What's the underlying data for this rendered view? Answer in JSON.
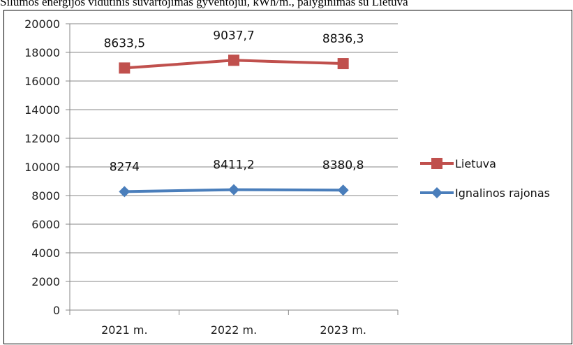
{
  "caption": "Šilumos energijos vidutinis suvartojimas gyventojui, kWh/m., palyginimas su Lietuva",
  "colors": {
    "series_1": "#c0504d",
    "series_2": "#4a7ebb",
    "grid": "#878787",
    "axis": "#878787"
  },
  "chart_data": {
    "type": "line",
    "categories": [
      "2021 m.",
      "2022 m.",
      "2023 m."
    ],
    "ylim": [
      0,
      20000
    ],
    "yticks": [
      0,
      2000,
      4000,
      6000,
      8000,
      10000,
      12000,
      14000,
      16000,
      18000,
      20000
    ],
    "ytick_labels": [
      "0",
      "2000",
      "4000",
      "6000",
      "8000",
      "10000",
      "12000",
      "14000",
      "16000",
      "18000",
      "20000"
    ],
    "grid": true,
    "legend_position": "right",
    "stacked": true,
    "series": [
      {
        "name": "Lietuva",
        "values": [
          8633.5,
          9037.7,
          8836.3
        ],
        "data_labels": [
          "8633,5",
          "9037,7",
          "8836,3"
        ],
        "color": "#c0504d",
        "marker": "square"
      },
      {
        "name": "Ignalinos rajonas",
        "values": [
          8274,
          8411.2,
          8380.8
        ],
        "data_labels": [
          "8274",
          "8411,2",
          "8380,8"
        ],
        "color": "#4a7ebb",
        "marker": "diamond"
      }
    ]
  }
}
